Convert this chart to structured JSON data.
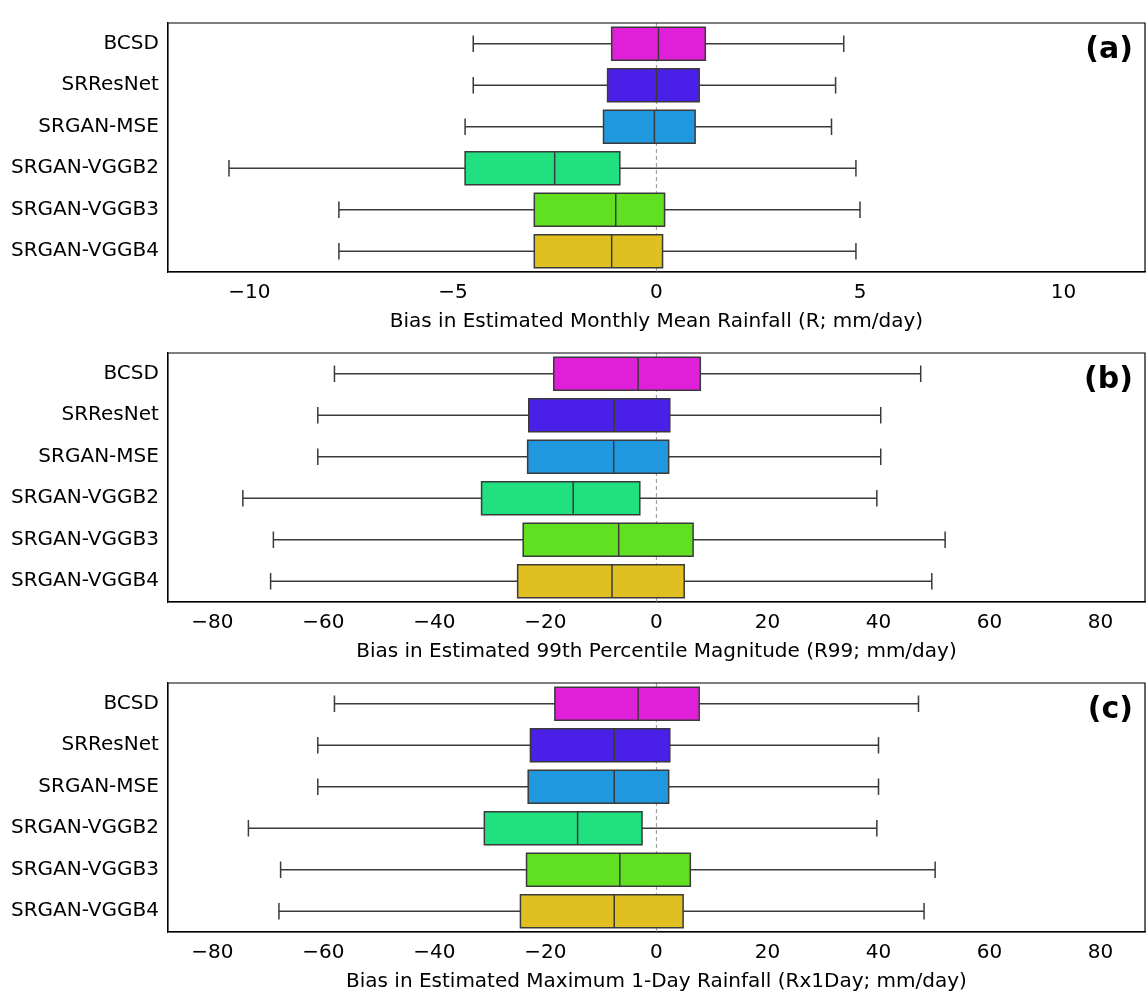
{
  "chart_data": [
    {
      "type": "box",
      "orientation": "horizontal",
      "categories": [
        "BCSD",
        "SRResNet",
        "SRGAN-MSE",
        "SRGAN-VGGB2",
        "SRGAN-VGGB3",
        "SRGAN-VGGB4"
      ],
      "colors": [
        "#e020d8",
        "#4a20e8",
        "#2098e0",
        "#20e080",
        "#60e020",
        "#e0c020"
      ],
      "boxes": [
        {
          "low": -4.5,
          "q1": -1.1,
          "median": 0.05,
          "q3": 1.2,
          "high": 4.6
        },
        {
          "low": -4.5,
          "q1": -1.2,
          "median": 0.0,
          "q3": 1.05,
          "high": 4.4
        },
        {
          "low": -4.7,
          "q1": -1.3,
          "median": -0.05,
          "q3": 0.95,
          "high": 4.3
        },
        {
          "low": -10.5,
          "q1": -4.7,
          "median": -2.5,
          "q3": -0.9,
          "high": 4.9
        },
        {
          "low": -7.8,
          "q1": -3.0,
          "median": -1.0,
          "q3": 0.2,
          "high": 5.0
        },
        {
          "low": -7.8,
          "q1": -3.0,
          "median": -1.1,
          "q3": 0.15,
          "high": 4.9
        }
      ],
      "xlabel": "Bias in Estimated Monthly Mean Rainfall (R; mm/day)",
      "xlim": [
        -12,
        12
      ],
      "xticks": [
        -10,
        -5,
        0,
        5,
        10
      ],
      "ref_lines": [
        {
          "axis": "x",
          "value": 0,
          "color": "#a0a0a0",
          "line_style": "dashed"
        }
      ],
      "annotations": [
        "(a)"
      ],
      "grid": false,
      "legend": false
    },
    {
      "type": "box",
      "orientation": "horizontal",
      "categories": [
        "BCSD",
        "SRResNet",
        "SRGAN-MSE",
        "SRGAN-VGGB2",
        "SRGAN-VGGB3",
        "SRGAN-VGGB4"
      ],
      "colors": [
        "#e020d8",
        "#4a20e8",
        "#2098e0",
        "#20e080",
        "#60e020",
        "#e0c020"
      ],
      "boxes": [
        {
          "low": -58,
          "q1": -18.5,
          "median": -3.3,
          "q3": 7.9,
          "high": 47.6
        },
        {
          "low": -61,
          "q1": -23,
          "median": -7.6,
          "q3": 2.4,
          "high": 40.4
        },
        {
          "low": -61,
          "q1": -23.2,
          "median": -7.7,
          "q3": 2.2,
          "high": 40.4
        },
        {
          "low": -74.5,
          "q1": -31.5,
          "median": -15,
          "q3": -3,
          "high": 39.7
        },
        {
          "low": -69,
          "q1": -24,
          "median": -6.8,
          "q3": 6.6,
          "high": 52
        },
        {
          "low": -69.5,
          "q1": -25,
          "median": -8,
          "q3": 5,
          "high": 49.6
        }
      ],
      "xlabel": "Bias in Estimated 99th Percentile Magnitude (R99; mm/day)",
      "xlim": [
        -88,
        88
      ],
      "xticks": [
        -80,
        -60,
        -40,
        -20,
        0,
        20,
        40,
        60,
        80
      ],
      "ref_lines": [
        {
          "axis": "x",
          "value": 0,
          "color": "#a0a0a0",
          "line_style": "dashed"
        }
      ],
      "annotations": [
        "(b)"
      ],
      "grid": false,
      "legend": false
    },
    {
      "type": "box",
      "orientation": "horizontal",
      "categories": [
        "BCSD",
        "SRResNet",
        "SRGAN-MSE",
        "SRGAN-VGGB2",
        "SRGAN-VGGB3",
        "SRGAN-VGGB4"
      ],
      "colors": [
        "#e020d8",
        "#4a20e8",
        "#2098e0",
        "#20e080",
        "#60e020",
        "#e0c020"
      ],
      "boxes": [
        {
          "low": -58,
          "q1": -18.3,
          "median": -3.3,
          "q3": 7.7,
          "high": 47.2
        },
        {
          "low": -61,
          "q1": -22.7,
          "median": -7.6,
          "q3": 2.4,
          "high": 40
        },
        {
          "low": -61,
          "q1": -23.1,
          "median": -7.6,
          "q3": 2.2,
          "high": 40
        },
        {
          "low": -73.5,
          "q1": -31,
          "median": -14.2,
          "q3": -2.6,
          "high": 39.7
        },
        {
          "low": -67.7,
          "q1": -23.4,
          "median": -6.6,
          "q3": 6.1,
          "high": 50.2
        },
        {
          "low": -68,
          "q1": -24.5,
          "median": -7.6,
          "q3": 4.8,
          "high": 48.2
        }
      ],
      "xlabel": "Bias in Estimated Maximum 1-Day Rainfall (Rx1Day; mm/day)",
      "xlim": [
        -88,
        88
      ],
      "xticks": [
        -80,
        -60,
        -40,
        -20,
        0,
        20,
        40,
        60,
        80
      ],
      "ref_lines": [
        {
          "axis": "x",
          "value": 0,
          "color": "#a0a0a0",
          "line_style": "dashed"
        }
      ],
      "annotations": [
        "(c)"
      ],
      "grid": false,
      "legend": false
    }
  ]
}
